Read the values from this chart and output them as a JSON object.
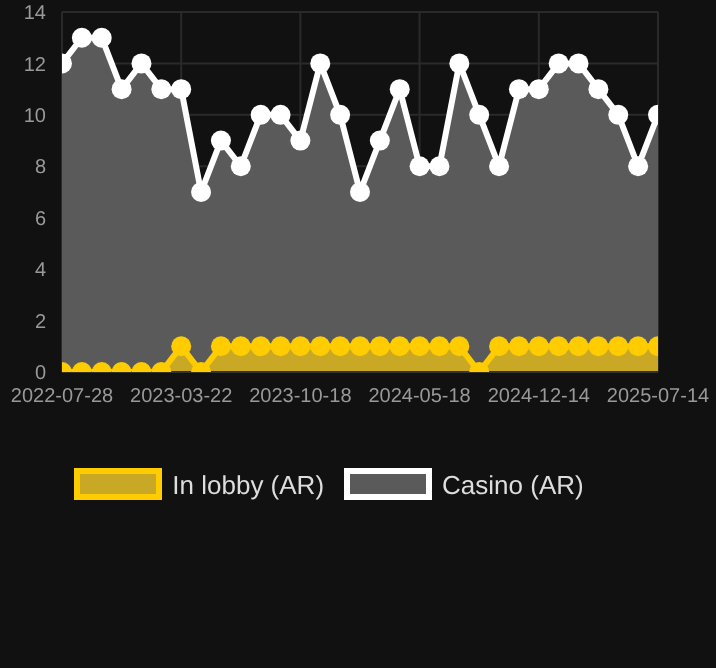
{
  "chart_data": {
    "type": "area",
    "categories": [
      "2022-07-28",
      null,
      null,
      null,
      null,
      null,
      "2023-03-22",
      null,
      null,
      null,
      null,
      null,
      "2023-10-18",
      null,
      null,
      null,
      null,
      null,
      "2024-05-18",
      null,
      null,
      null,
      null,
      null,
      "2024-12-14",
      null,
      null,
      null,
      null,
      null,
      "2025-07-14"
    ],
    "series": [
      {
        "name": "In lobby (AR)",
        "color": "#ffcc00",
        "values": [
          0,
          0,
          0,
          0,
          0,
          0,
          1,
          0,
          1,
          1,
          1,
          1,
          1,
          1,
          1,
          1,
          1,
          1,
          1,
          1,
          1,
          0,
          1,
          1,
          1,
          1,
          1,
          1,
          1,
          1,
          1
        ]
      },
      {
        "name": "Casino (AR)",
        "color": "#ffffff",
        "values": [
          12,
          13,
          13,
          11,
          12,
          11,
          11,
          7,
          9,
          8,
          10,
          10,
          9,
          12,
          10,
          7,
          9,
          11,
          8,
          8,
          12,
          10,
          8,
          11,
          11,
          12,
          12,
          11,
          10,
          8,
          10
        ]
      }
    ],
    "ylim": [
      0,
      14
    ],
    "yticks": [
      0,
      2,
      4,
      6,
      8,
      10,
      12,
      14
    ],
    "grid": true,
    "legend": "bottom",
    "marker": "circle",
    "line_style": "solid"
  }
}
